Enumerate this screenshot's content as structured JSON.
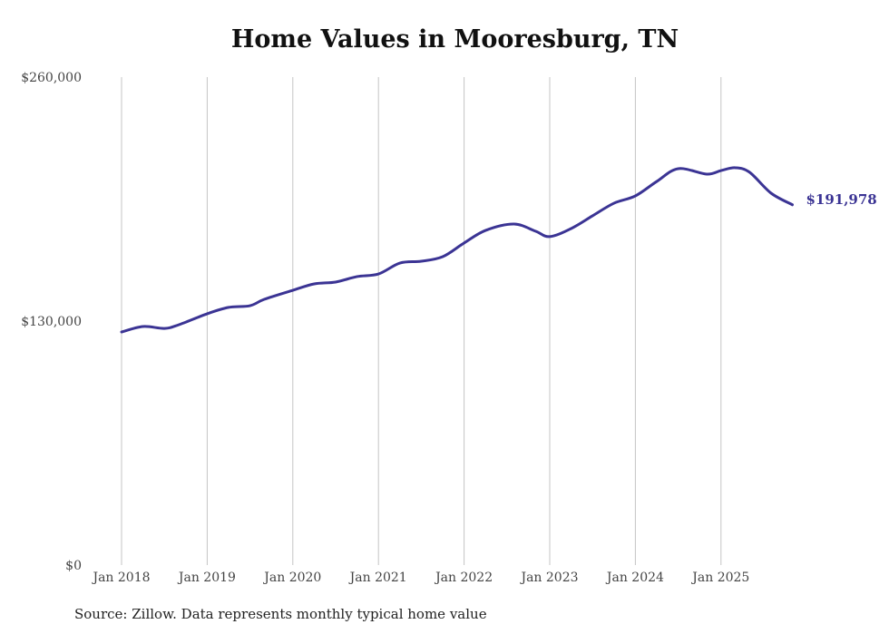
{
  "chart_data": {
    "type": "line",
    "title": "Home Values in Mooresburg, TN",
    "source": "Source: Zillow. Data represents monthly typical home value",
    "xlabel": "",
    "ylabel": "",
    "ylim": [
      0,
      260000
    ],
    "y_ticks": [
      {
        "value": 0,
        "label": "$0"
      },
      {
        "value": 130000,
        "label": "$130,000"
      },
      {
        "value": 260000,
        "label": "$260,000"
      }
    ],
    "x_ticks": [
      {
        "month": 0,
        "label": "Jan 2018"
      },
      {
        "month": 12,
        "label": "Jan 2019"
      },
      {
        "month": 24,
        "label": "Jan 2020"
      },
      {
        "month": 36,
        "label": "Jan 2021"
      },
      {
        "month": 48,
        "label": "Jan 2022"
      },
      {
        "month": 60,
        "label": "Jan 2023"
      },
      {
        "month": 72,
        "label": "Jan 2024"
      },
      {
        "month": 84,
        "label": "Jan 2025"
      }
    ],
    "grid": "vertical",
    "series": [
      {
        "name": "Typical home value",
        "color": "#3b3494",
        "end_label": "$191,978",
        "points": [
          [
            0,
            124200
          ],
          [
            3,
            127100
          ],
          [
            6,
            126100
          ],
          [
            8,
            128000
          ],
          [
            12,
            133900
          ],
          [
            15,
            137300
          ],
          [
            18,
            138200
          ],
          [
            20,
            141600
          ],
          [
            24,
            146400
          ],
          [
            27,
            149800
          ],
          [
            30,
            150800
          ],
          [
            33,
            153700
          ],
          [
            36,
            155100
          ],
          [
            39,
            160900
          ],
          [
            42,
            161900
          ],
          [
            45,
            164300
          ],
          [
            48,
            171600
          ],
          [
            51,
            178300
          ],
          [
            55,
            181700
          ],
          [
            58,
            177900
          ],
          [
            60,
            175000
          ],
          [
            63,
            179300
          ],
          [
            66,
            186100
          ],
          [
            69,
            192800
          ],
          [
            72,
            196700
          ],
          [
            75,
            204400
          ],
          [
            78,
            211200
          ],
          [
            82,
            208300
          ],
          [
            84,
            210200
          ],
          [
            86,
            211700
          ],
          [
            88,
            209300
          ],
          [
            91,
            198200
          ],
          [
            94,
            191978
          ]
        ]
      }
    ]
  }
}
